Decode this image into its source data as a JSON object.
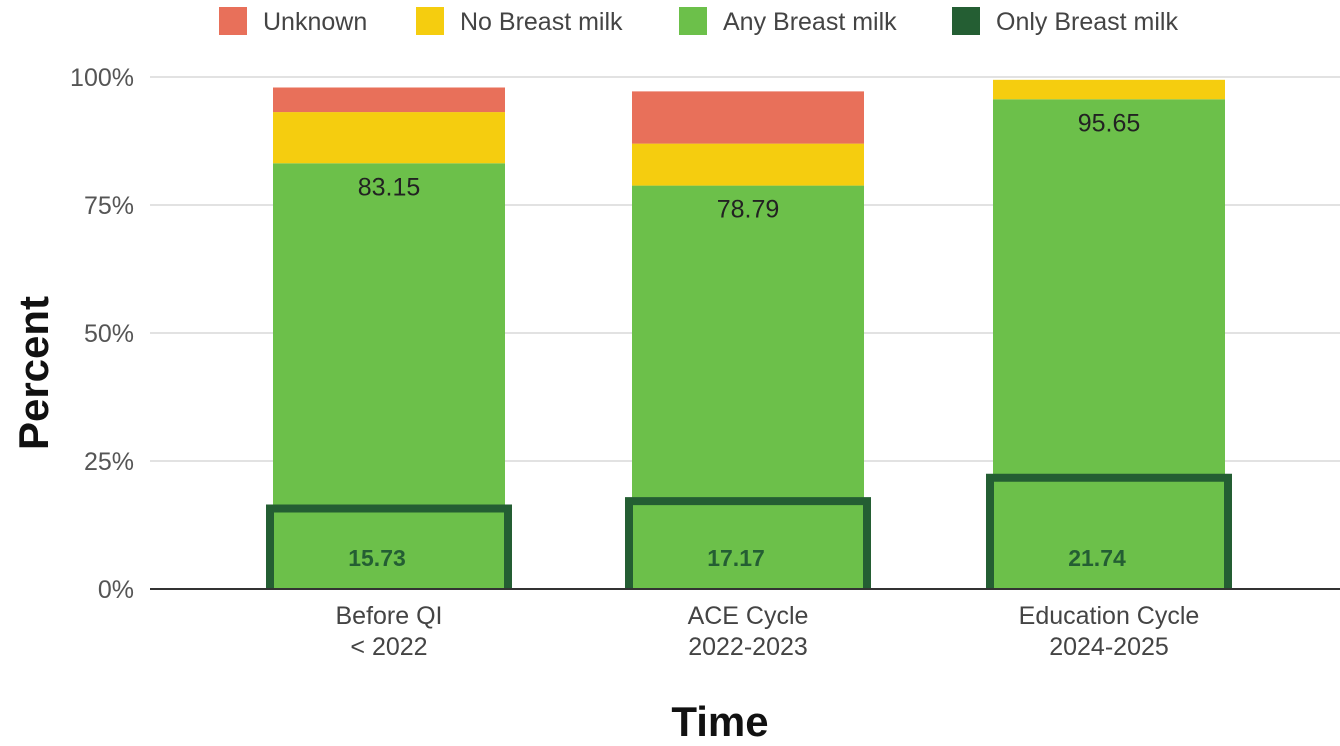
{
  "chart_data": {
    "type": "bar",
    "stacked": true,
    "categories": [
      [
        "Before QI",
        "< 2022"
      ],
      [
        "ACE Cycle",
        "2022-2023"
      ],
      [
        "Education Cycle",
        "2024-2025"
      ]
    ],
    "series": [
      {
        "name": "Unknown",
        "color": "#e8705a",
        "values": [
          4.8,
          10.2,
          0
        ]
      },
      {
        "name": "No Breast milk",
        "color": "#f5cd0f",
        "values": [
          10.0,
          8.2,
          3.8
        ]
      },
      {
        "name": "Any Breast milk",
        "color": "#6cc04a",
        "values": [
          83.15,
          78.79,
          95.65
        ]
      }
    ],
    "only_breast_milk": {
      "name": "Only Breast milk",
      "color": "#245e33",
      "values": [
        15.73,
        17.17,
        21.74
      ]
    },
    "any_labels": [
      "83.15",
      "78.79",
      "95.65"
    ],
    "only_labels": [
      "15.73",
      "17.17",
      "21.74"
    ],
    "xlabel": "Time",
    "ylabel": "Percent",
    "ylim": [
      0,
      100
    ],
    "yticks": [
      0,
      25,
      50,
      75,
      100
    ],
    "ytick_labels": [
      "0%",
      "25%",
      "50%",
      "75%",
      "100%"
    ],
    "grid": true,
    "legend_position": "top",
    "legend": [
      "Unknown",
      "No Breast milk",
      "Any Breast milk",
      "Only Breast milk"
    ]
  }
}
